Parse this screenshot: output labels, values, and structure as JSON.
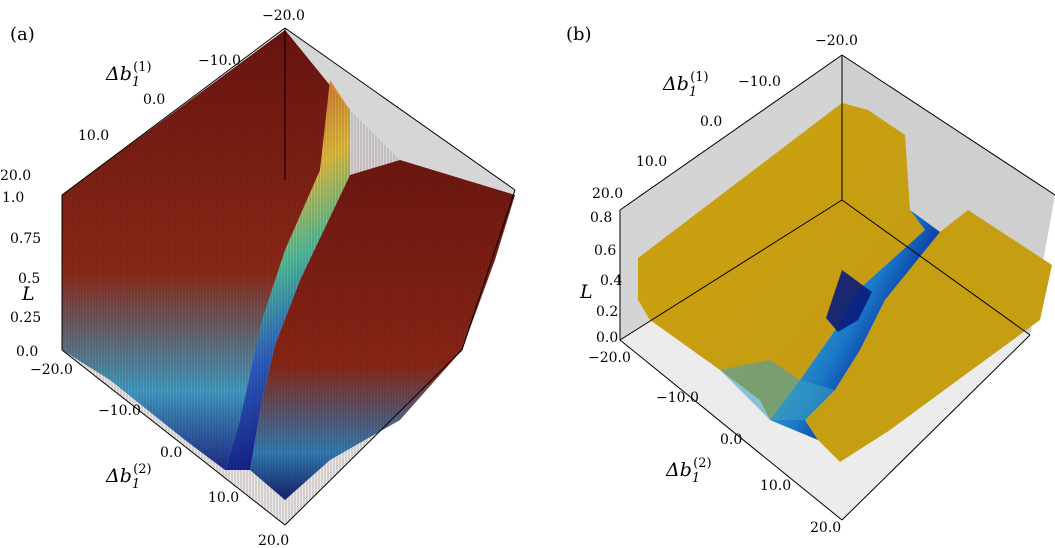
{
  "chart_data": [
    {
      "panel_label": "(a)",
      "type": "surface3d",
      "x_axis_label": "Δb",
      "x_axis_sub": "1",
      "x_axis_sup": "(1)",
      "y_axis_label": "Δb",
      "y_axis_sub": "1",
      "y_axis_sup": "(2)",
      "z_axis_label": "L",
      "x_ticks": [
        "−20.0",
        "−10.0",
        "0.0",
        "10.0",
        "20.0"
      ],
      "y_ticks": [
        "−20.0",
        "−10.0",
        "0.0",
        "10.0",
        "20.0"
      ],
      "z_ticks": [
        "0.0",
        "0.25",
        "0.5",
        "0.75",
        "1.0"
      ],
      "x_range": [
        -20,
        20
      ],
      "y_range": [
        -20,
        20
      ],
      "z_range": [
        0,
        1
      ],
      "colormap": "jet",
      "surface": "noisy; minimum near Δb1(1) = Δb1(2) ≈ 0, high plateau (~1.0) elsewhere"
    },
    {
      "panel_label": "(b)",
      "type": "surface3d",
      "x_axis_label": "Δb",
      "x_axis_sub": "1",
      "x_axis_sup": "(1)",
      "y_axis_label": "Δb",
      "y_axis_sub": "1",
      "y_axis_sup": "(2)",
      "z_axis_label": "L",
      "x_ticks": [
        "−20.0",
        "−10.0",
        "0.0",
        "10.0",
        "20.0"
      ],
      "y_ticks": [
        "−20.0",
        "−10.0",
        "0.0",
        "10.0",
        "20.0"
      ],
      "z_ticks": [
        "0.0",
        "0.2",
        "0.4",
        "0.6",
        "0.8"
      ],
      "x_range": [
        -20,
        20
      ],
      "y_range": [
        -20,
        20
      ],
      "z_range": [
        0,
        0.8
      ],
      "colormap": "viridis-like (blue to gold)",
      "surface": "smooth plateau ~0.5 with a valley along Δb1(1) ≈ 0 and minimum near Δb1(2) ≈ 0"
    }
  ]
}
